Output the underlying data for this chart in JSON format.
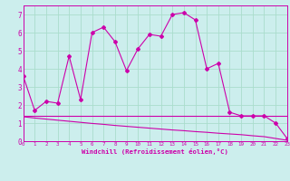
{
  "xlabel": "Windchill (Refroidissement éolien,°C)",
  "xlim": [
    0,
    23
  ],
  "ylim": [
    0,
    7.5
  ],
  "background_color": "#cceeed",
  "grid_color": "#aaddcc",
  "line_color": "#cc00aa",
  "line1_x": [
    0,
    1,
    2,
    3,
    4,
    5,
    6,
    7,
    8,
    9,
    10,
    11,
    12,
    13,
    14,
    15,
    16,
    17,
    18,
    19,
    20,
    21,
    22,
    23
  ],
  "line1_y": [
    3.6,
    1.7,
    2.2,
    2.1,
    4.7,
    2.3,
    6.0,
    6.3,
    5.5,
    3.9,
    5.1,
    5.9,
    5.8,
    7.0,
    7.1,
    6.7,
    4.0,
    4.3,
    1.6,
    1.4,
    1.4,
    1.4,
    1.0,
    0.15
  ],
  "line2_x": [
    0,
    1,
    2,
    3,
    4,
    5,
    6,
    7,
    8,
    9,
    10,
    11,
    12,
    13,
    14,
    15,
    16,
    17,
    18,
    19,
    20,
    21,
    22,
    23
  ],
  "line2_y": [
    1.42,
    1.42,
    1.42,
    1.42,
    1.42,
    1.42,
    1.42,
    1.42,
    1.42,
    1.42,
    1.42,
    1.42,
    1.42,
    1.42,
    1.42,
    1.42,
    1.42,
    1.42,
    1.42,
    1.42,
    1.42,
    1.42,
    1.42,
    1.42
  ],
  "line3_x": [
    0,
    1,
    2,
    3,
    4,
    5,
    6,
    7,
    8,
    9,
    10,
    11,
    12,
    13,
    14,
    15,
    16,
    17,
    18,
    19,
    20,
    21,
    22,
    23
  ],
  "line3_y": [
    1.35,
    1.28,
    1.22,
    1.16,
    1.1,
    1.04,
    0.98,
    0.93,
    0.87,
    0.82,
    0.77,
    0.72,
    0.67,
    0.62,
    0.58,
    0.53,
    0.49,
    0.44,
    0.4,
    0.36,
    0.3,
    0.25,
    0.15,
    0.05
  ],
  "xticks": [
    0,
    1,
    2,
    3,
    4,
    5,
    6,
    7,
    8,
    9,
    10,
    11,
    12,
    13,
    14,
    15,
    16,
    17,
    18,
    19,
    20,
    21,
    22,
    23
  ],
  "yticks": [
    0,
    1,
    2,
    3,
    4,
    5,
    6,
    7
  ]
}
